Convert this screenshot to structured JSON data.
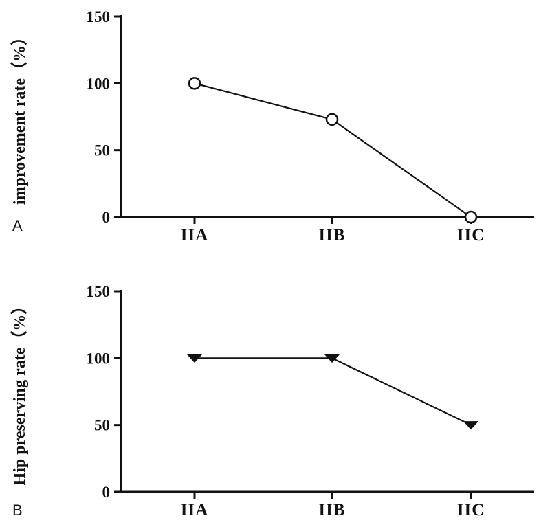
{
  "chart_data": [
    {
      "type": "line",
      "panel_label": "A",
      "ylabel": "improvement rate（%）",
      "categories": [
        "IIA",
        "IIB",
        "IIC"
      ],
      "series": [
        {
          "values": [
            100,
            73,
            0
          ],
          "marker": "circle"
        }
      ],
      "ylim": [
        0,
        150
      ],
      "yticks": [
        0,
        50,
        100,
        150
      ],
      "grid": false
    },
    {
      "type": "line",
      "panel_label": "B",
      "ylabel": "Hip preserving rate（%）",
      "categories": [
        "IIA",
        "IIB",
        "IIC"
      ],
      "series": [
        {
          "values": [
            100,
            100,
            50
          ],
          "marker": "triangle-down"
        }
      ],
      "ylim": [
        0,
        150
      ],
      "yticks": [
        0,
        50,
        100,
        150
      ],
      "grid": false
    }
  ]
}
